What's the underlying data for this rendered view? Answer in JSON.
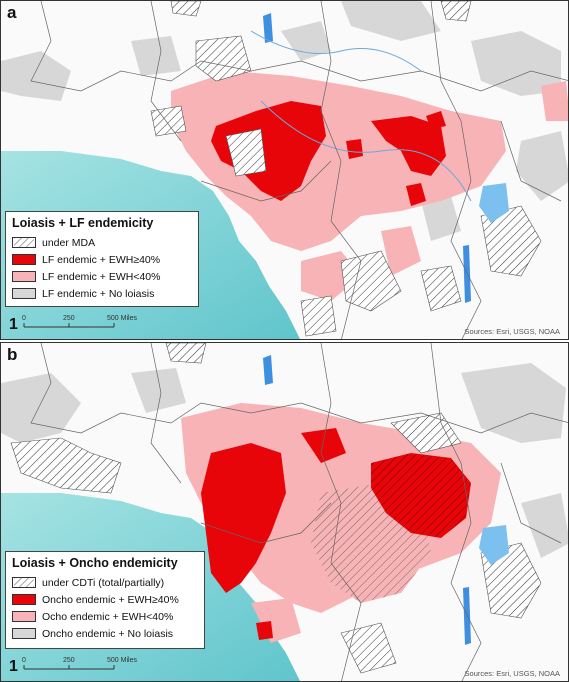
{
  "panels": [
    {
      "label": "a",
      "legend": {
        "title": "Loiasis + LF endemicity",
        "items": [
          {
            "label": "under MDA",
            "fill": "hatch"
          },
          {
            "label": "LF endemic + EWH≥40%",
            "fill": "#e8050a"
          },
          {
            "label": "LF endemic + EWH<40%",
            "fill": "#f7b3b5"
          },
          {
            "label": "LF endemic + No loiasis",
            "fill": "#d7d7d7"
          }
        ]
      },
      "scale": {
        "north": "1",
        "ticks": [
          "0",
          "250",
          "500 Miles"
        ]
      },
      "sources": "Sources: Esri, USGS, NOAA"
    },
    {
      "label": "b",
      "legend": {
        "title": "Loiasis + Oncho endemicity",
        "items": [
          {
            "label": "under CDTi (total/partially)",
            "fill": "hatch"
          },
          {
            "label": "Oncho endemic +  EWH≥40%",
            "fill": "#e8050a"
          },
          {
            "label": "Ocho endemic + EWH<40%",
            "fill": "#f7b3b5"
          },
          {
            "label": "Oncho endemic + No loiasis",
            "fill": "#d7d7d7"
          }
        ]
      },
      "scale": {
        "north": "1",
        "ticks": [
          "0",
          "250",
          "500 Miles"
        ]
      },
      "sources": "Sources: Esri, USGS, NOAA"
    }
  ],
  "colors": {
    "ocean": "#7fd3d6",
    "land": "#ffffff",
    "ewh_high": "#e8050a",
    "ewh_low": "#f7b3b5",
    "no_loiasis": "#d7d7d7",
    "water": "#3f8fe0"
  }
}
